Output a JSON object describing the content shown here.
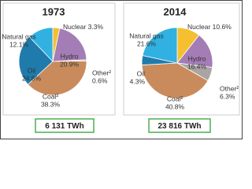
{
  "chart_data": [
    {
      "type": "pie",
      "title": "1973",
      "total_label": "6 131 TWh",
      "categories": [
        "Nuclear",
        "Hydro",
        "Other²",
        "Coal²",
        "Oil",
        "Natural gas"
      ],
      "values": [
        3.3,
        20.9,
        0.6,
        38.3,
        24.8,
        12.1
      ],
      "value_labels": [
        "3.3%",
        "20.9%",
        "0.6%",
        "38.3%",
        "24.8%",
        "12.1%"
      ],
      "colors": [
        "#f4c030",
        "#a47cb6",
        "#aaa4a2",
        "#c98b5c",
        "#1f7bac",
        "#30b1e2"
      ]
    },
    {
      "type": "pie",
      "title": "2014",
      "total_label": "23 816 TWh",
      "categories": [
        "Nuclear",
        "Hydro",
        "Other²",
        "Coal²",
        "Oil",
        "Natural gas"
      ],
      "values": [
        10.6,
        16.4,
        6.3,
        40.8,
        4.3,
        21.6
      ],
      "value_labels": [
        "10.6%",
        "16.4%",
        "6.3%",
        "40.8%",
        "4.3%",
        "21.6%"
      ],
      "colors": [
        "#f4c030",
        "#a47cb6",
        "#aaa4a2",
        "#c98b5c",
        "#1f7bac",
        "#30b1e2"
      ]
    }
  ]
}
